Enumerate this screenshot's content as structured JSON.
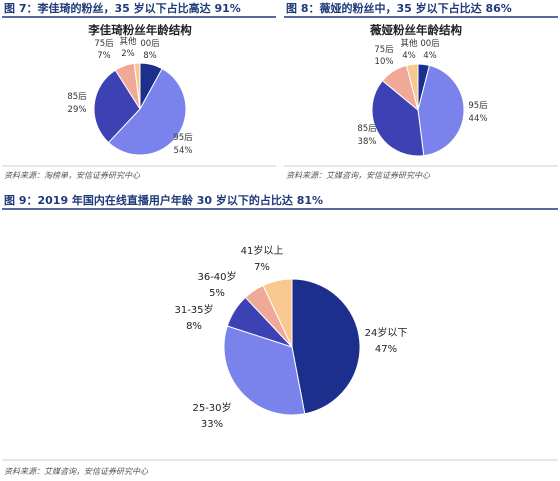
{
  "colors": {
    "header": "#1f3a7a",
    "rule": "#1f3a7a",
    "dark_navy": "#1c2f8c",
    "medium_blue": "#3c42b4",
    "light_blue": "#7a82ec",
    "salmon": "#f0a898",
    "peach": "#f8c890"
  },
  "fig7": {
    "header": "图 7：李佳琦的粉丝，35 岁以下占比高达 91%",
    "source": "资料来源：淘榜单，安信证券研究中心"
  },
  "fig8": {
    "header": "图 8：薇娅的粉丝中，35 岁以下占比达 86%",
    "source": "资料来源：艾媒咨询，安信证券研究中心"
  },
  "fig9": {
    "header": "图 9：2019 年国内在线直播用户年龄 30 岁以下的占比达 81%",
    "source": "资料来源：艾媒咨询，安信证券研究中心"
  },
  "chart_data": [
    {
      "type": "pie",
      "title": "李佳琦粉丝年龄结构",
      "slices": [
        {
          "label": "00后",
          "pct": "8%",
          "value": 8,
          "color": "#1c2f8c"
        },
        {
          "label": "95后",
          "pct": "54%",
          "value": 54,
          "color": "#7a82ec"
        },
        {
          "label": "85后",
          "pct": "29%",
          "value": 29,
          "color": "#3c42b4"
        },
        {
          "label": "75后",
          "pct": "7%",
          "value": 7,
          "color": "#f0a898"
        },
        {
          "label": "其他",
          "pct": "2%",
          "value": 2,
          "color": "#f8c890"
        }
      ]
    },
    {
      "type": "pie",
      "title": "薇娅粉丝年龄结构",
      "slices": [
        {
          "label": "00后",
          "pct": "4%",
          "value": 4,
          "color": "#1c2f8c"
        },
        {
          "label": "95后",
          "pct": "44%",
          "value": 44,
          "color": "#7a82ec"
        },
        {
          "label": "85后",
          "pct": "38%",
          "value": 38,
          "color": "#3c42b4"
        },
        {
          "label": "75后",
          "pct": "10%",
          "value": 10,
          "color": "#f0a898"
        },
        {
          "label": "其他",
          "pct": "4%",
          "value": 4,
          "color": "#f8c890"
        }
      ]
    },
    {
      "type": "pie",
      "title": "",
      "slices": [
        {
          "label": "24岁以下",
          "pct": "47%",
          "value": 47,
          "color": "#1c2f8c"
        },
        {
          "label": "25-30岁",
          "pct": "33%",
          "value": 33,
          "color": "#7a82ec"
        },
        {
          "label": "31-35岁",
          "pct": "8%",
          "value": 8,
          "color": "#3c42b4"
        },
        {
          "label": "36-40岁",
          "pct": "5%",
          "value": 5,
          "color": "#f0a898"
        },
        {
          "label": "41岁以上",
          "pct": "7%",
          "value": 7,
          "color": "#f8c890"
        }
      ]
    }
  ]
}
